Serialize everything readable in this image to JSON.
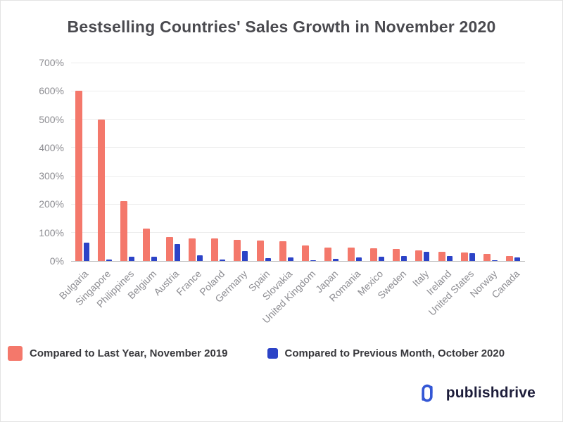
{
  "title": "Bestselling Countries' Sales Growth in November 2020",
  "colors": {
    "last_year": "#F4786B",
    "prev_month": "#2C43C7",
    "grid": "#ededed",
    "axis_line": "#b9b9b9",
    "axis_text": "#8d8d92",
    "title_text": "#4a4a4f",
    "logo_blue": "#3457D5"
  },
  "chart_data": {
    "type": "bar",
    "title": "Bestselling Countries' Sales Growth in November 2020",
    "categories": [
      "Bulgaria",
      "Singapore",
      "Philippines",
      "Belgium",
      "Austria",
      "France",
      "Poland",
      "Germany",
      "Spain",
      "Slovakia",
      "United Kingdom",
      "Japan",
      "Romania",
      "Mexico",
      "Sweden",
      "Italy",
      "Ireland",
      "United States",
      "Norway",
      "Canada"
    ],
    "series": [
      {
        "name": "Compared to Last Year, November 2019",
        "color": "#F4786B",
        "values": [
          600,
          500,
          210,
          115,
          85,
          80,
          80,
          75,
          72,
          70,
          55,
          48,
          47,
          45,
          43,
          38,
          33,
          30,
          25,
          18
        ]
      },
      {
        "name": "Compared to Previous  Month, October 2020",
        "color": "#2C43C7",
        "values": [
          65,
          5,
          15,
          15,
          60,
          20,
          6,
          35,
          10,
          12,
          3,
          8,
          12,
          15,
          17,
          32,
          17,
          28,
          2,
          12
        ]
      }
    ],
    "xlabel": "",
    "ylabel": "",
    "ylim": [
      0,
      700
    ],
    "yticks": [
      "0%",
      "100%",
      "200%",
      "300%",
      "400%",
      "500%",
      "600%",
      "700%"
    ],
    "grid": true,
    "legend_position": "bottom"
  },
  "logo": {
    "text": "publishdrive"
  }
}
